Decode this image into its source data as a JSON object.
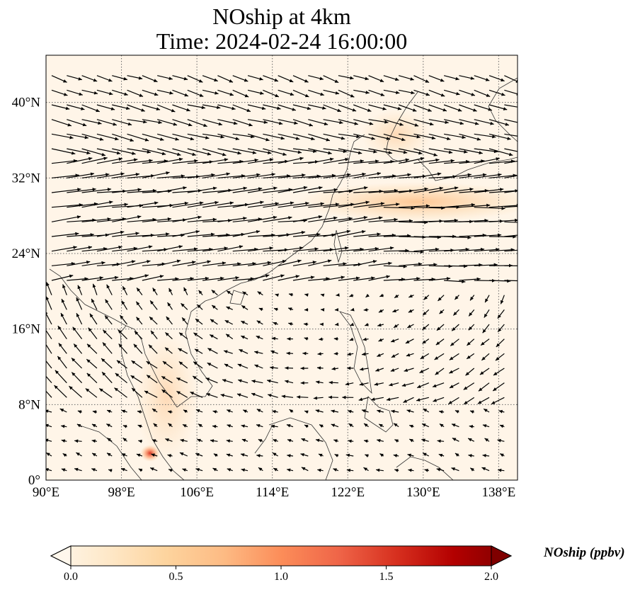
{
  "title": {
    "line1": "NOship at 4km",
    "line2": "Time: 2024-02-24 16:00:00"
  },
  "map": {
    "extent": {
      "lon": [
        90,
        140
      ],
      "lat": [
        0,
        45
      ]
    },
    "lon_ticks": [
      "90°E",
      "98°E",
      "106°E",
      "114°E",
      "122°E",
      "130°E",
      "138°E"
    ],
    "lat_ticks": [
      "0°",
      "8°N",
      "16°N",
      "24°N",
      "32°N",
      "40°N"
    ],
    "gridlines": "dotted",
    "overlay": "wind vectors (quiver)"
  },
  "colorbar": {
    "label": "NOship (ppbv)",
    "ticks": [
      "0.0",
      "0.5",
      "1.0",
      "1.5",
      "2.0"
    ],
    "range": [
      0,
      2
    ],
    "colormap": "OrRd",
    "colors": [
      "#fff7ec",
      "#fee8c8",
      "#fdd49e",
      "#fdbb84",
      "#fc8d59",
      "#ef6548",
      "#d7301f",
      "#b30000",
      "#7f0000"
    ]
  }
}
